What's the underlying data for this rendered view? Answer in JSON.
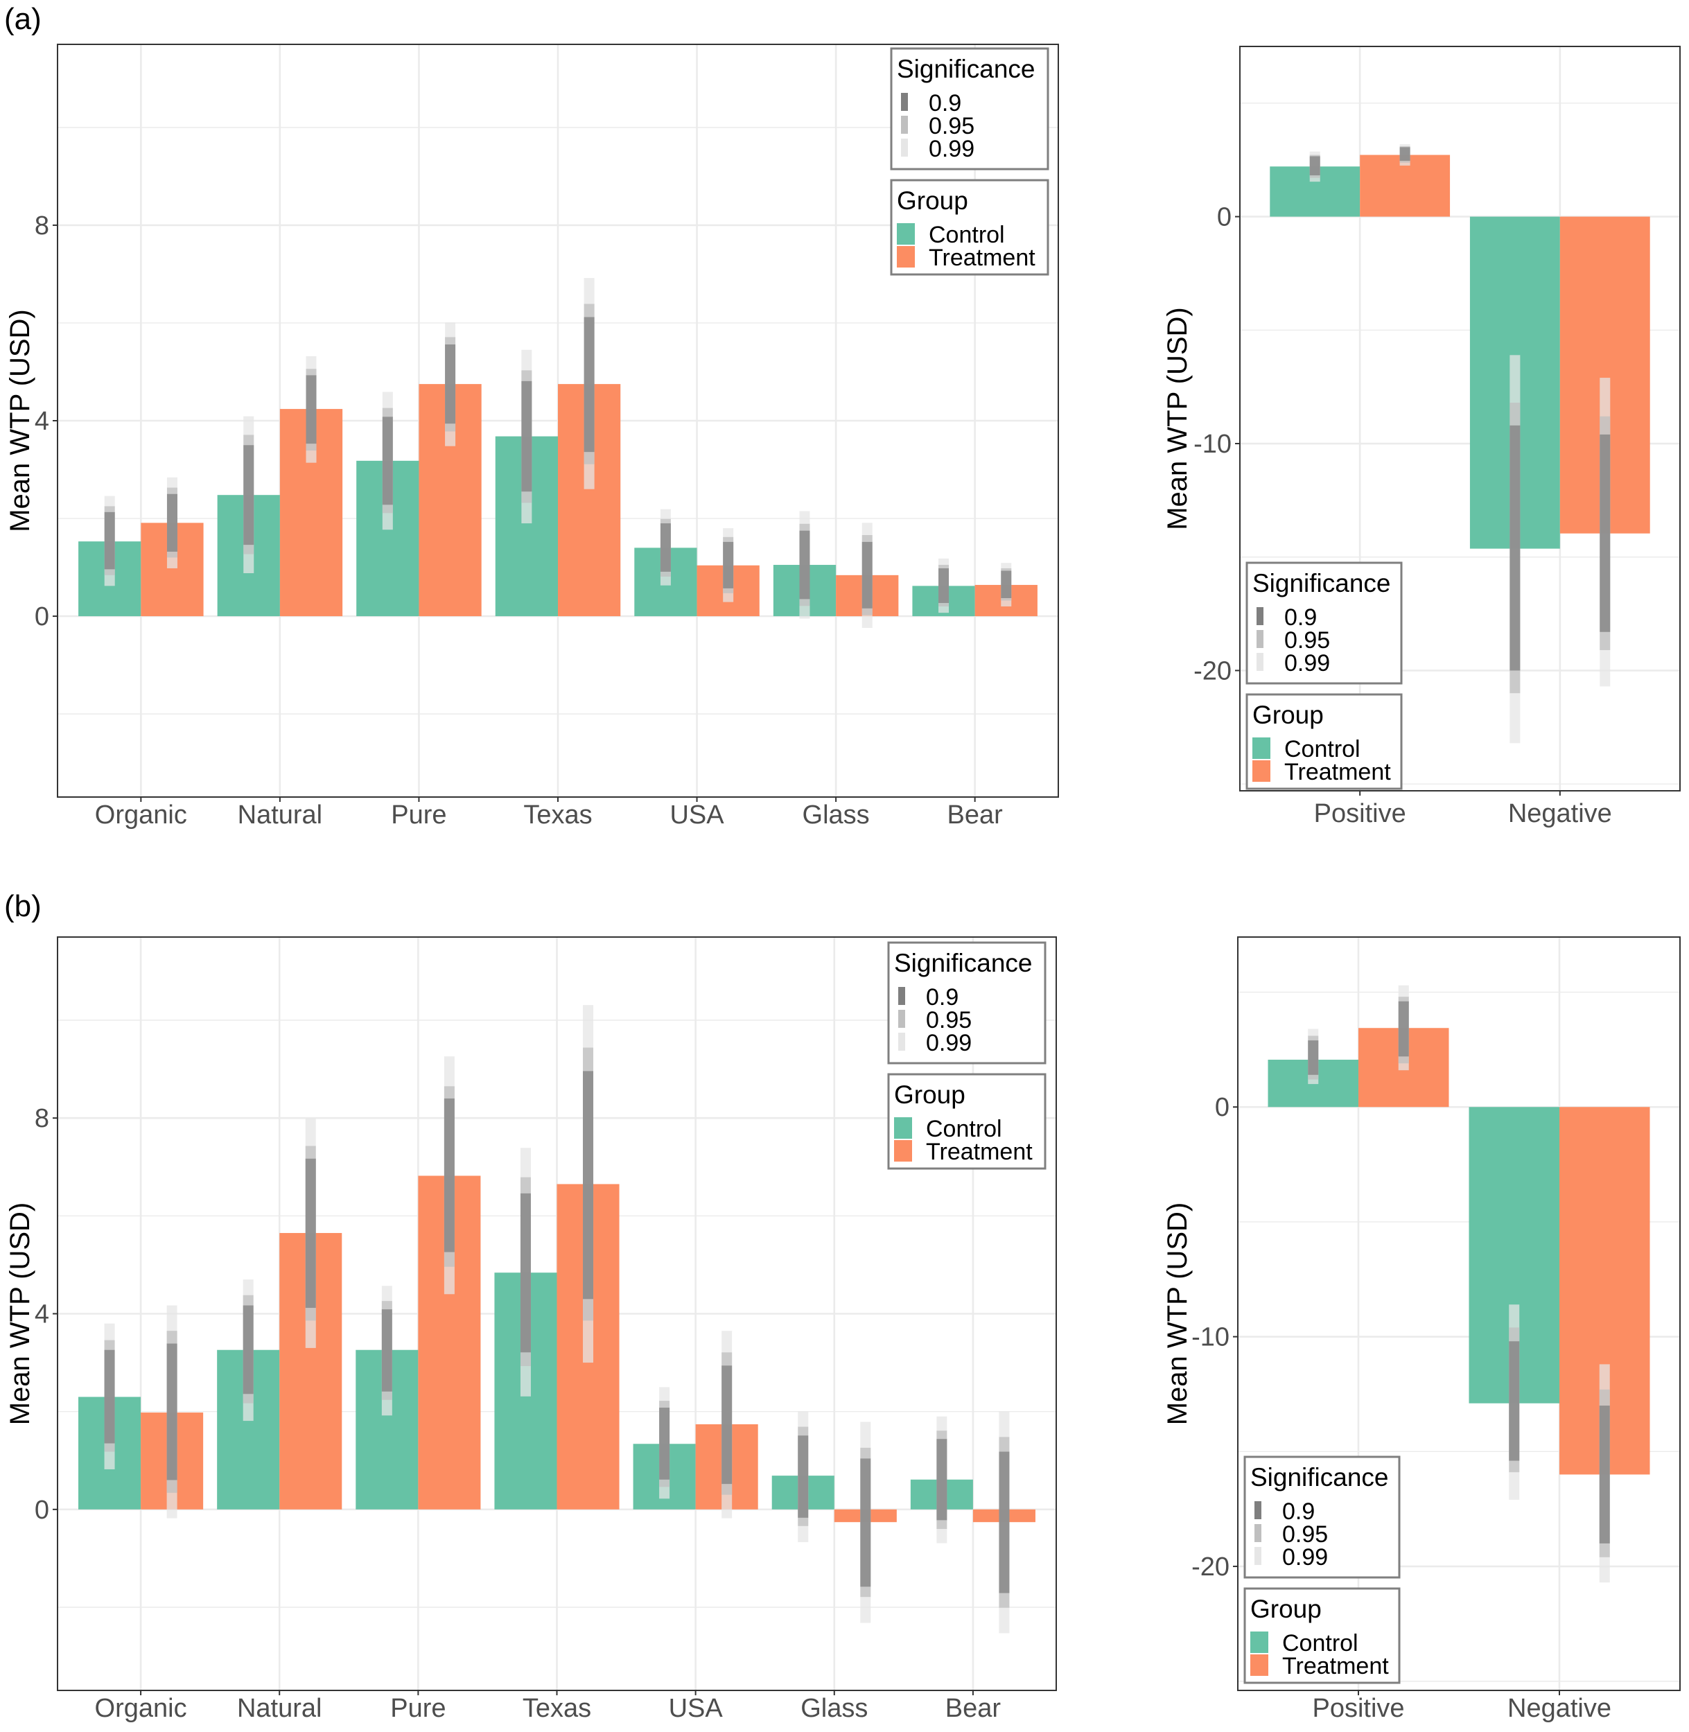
{
  "figure": {
    "panels": [
      "(a)",
      "(b)"
    ]
  },
  "colors": {
    "control": "#66c2a5",
    "treatment": "#fc8d62",
    "sig_0_9": "#7f7f7f",
    "sig_0_95": "#bfbfbf",
    "sig_0_99": "#e6e6e6",
    "grid": "#ebebeb",
    "border": "#333333"
  },
  "legend": {
    "significance_title": "Significance",
    "significance_levels": [
      "0.9",
      "0.95",
      "0.99"
    ],
    "group_title": "Group",
    "groups": [
      "Control",
      "Treatment"
    ]
  },
  "chart_data": [
    {
      "id": "a-attributes",
      "panel": "(a)",
      "type": "bar",
      "title": "",
      "xlabel": "",
      "ylabel": "Mean WTP (USD)",
      "ylim": [
        -3.7,
        11.7
      ],
      "yticks": [
        0,
        4,
        8
      ],
      "grid": true,
      "legend_position": "top-right",
      "categories": [
        "Organic",
        "Natural",
        "Pure",
        "Texas",
        "USA",
        "Glass",
        "Bear"
      ],
      "series": [
        {
          "name": "Control",
          "values": [
            1.53,
            2.48,
            3.18,
            3.68,
            1.4,
            1.05,
            0.62
          ],
          "intervals": {
            "0.9": [
              [
                0.96,
                2.13
              ],
              [
                1.46,
                3.5
              ],
              [
                2.28,
                4.08
              ],
              [
                2.55,
                4.81
              ],
              [
                0.91,
                1.9
              ],
              [
                0.35,
                1.75
              ],
              [
                0.27,
                0.98
              ]
            ],
            "0.95": [
              [
                0.84,
                2.25
              ],
              [
                1.27,
                3.71
              ],
              [
                2.11,
                4.26
              ],
              [
                2.32,
                5.03
              ],
              [
                0.81,
                1.99
              ],
              [
                0.21,
                1.89
              ],
              [
                0.2,
                1.05
              ]
            ],
            "0.99": [
              [
                0.62,
                2.46
              ],
              [
                0.88,
                4.09
              ],
              [
                1.77,
                4.59
              ],
              [
                1.9,
                5.45
              ],
              [
                0.63,
                2.19
              ],
              [
                -0.05,
                2.15
              ],
              [
                0.07,
                1.18
              ]
            ]
          }
        },
        {
          "name": "Treatment",
          "values": [
            1.91,
            4.24,
            4.75,
            4.75,
            1.04,
            0.84,
            0.64
          ],
          "intervals": {
            "0.9": [
              [
                1.32,
                2.5
              ],
              [
                3.53,
                4.93
              ],
              [
                3.94,
                5.56
              ],
              [
                3.36,
                6.12
              ],
              [
                0.57,
                1.52
              ],
              [
                0.16,
                1.52
              ],
              [
                0.37,
                0.93
              ]
            ],
            "0.95": [
              [
                1.2,
                2.63
              ],
              [
                3.39,
                5.06
              ],
              [
                3.78,
                5.71
              ],
              [
                3.11,
                6.39
              ],
              [
                0.47,
                1.62
              ],
              [
                0.02,
                1.66
              ],
              [
                0.32,
                0.98
              ]
            ],
            "0.99": [
              [
                0.98,
                2.84
              ],
              [
                3.14,
                5.32
              ],
              [
                3.48,
                6.01
              ],
              [
                2.6,
                6.92
              ],
              [
                0.29,
                1.8
              ],
              [
                -0.24,
                1.91
              ],
              [
                0.2,
                1.09
              ]
            ]
          }
        }
      ]
    },
    {
      "id": "a-valence",
      "panel": "(a)",
      "type": "bar",
      "title": "",
      "xlabel": "",
      "ylabel": "Mean WTP (USD)",
      "ylim": [
        -25.3,
        7.5
      ],
      "yticks": [
        0,
        -10,
        -20
      ],
      "grid": true,
      "legend_position": "bottom-left",
      "categories": [
        "Positive",
        "Negative"
      ],
      "series": [
        {
          "name": "Control",
          "values": [
            2.21,
            -14.63
          ],
          "intervals": {
            "0.9": [
              [
                1.82,
                2.66
              ],
              [
                -20.0,
                -9.2
              ]
            ],
            "0.95": [
              [
                1.71,
                2.72
              ],
              [
                -21.0,
                -8.2
              ]
            ],
            "0.99": [
              [
                1.54,
                2.87
              ],
              [
                -23.2,
                -6.1
              ]
            ]
          }
        },
        {
          "name": "Treatment",
          "values": [
            2.72,
            -13.96
          ],
          "intervals": {
            "0.9": [
              [
                2.46,
                3.06
              ],
              [
                -18.3,
                -9.6
              ]
            ],
            "0.95": [
              [
                2.38,
                3.1
              ],
              [
                -19.1,
                -8.8
              ]
            ],
            "0.99": [
              [
                2.25,
                3.19
              ],
              [
                -20.7,
                -7.1
              ]
            ]
          }
        }
      ]
    },
    {
      "id": "b-attributes",
      "panel": "(b)",
      "type": "bar",
      "title": "",
      "xlabel": "",
      "ylabel": "Mean WTP (USD)",
      "ylim": [
        -3.7,
        11.7
      ],
      "yticks": [
        0,
        4,
        8
      ],
      "grid": true,
      "legend_position": "top-right",
      "categories": [
        "Organic",
        "Natural",
        "Pure",
        "Texas",
        "USA",
        "Glass",
        "Bear"
      ],
      "series": [
        {
          "name": "Control",
          "values": [
            2.3,
            3.26,
            3.26,
            4.84,
            1.34,
            0.69,
            0.61
          ],
          "intervals": {
            "0.9": [
              [
                1.35,
                3.26
              ],
              [
                2.36,
                4.17
              ],
              [
                2.41,
                4.09
              ],
              [
                3.21,
                6.46
              ],
              [
                0.61,
                2.08
              ],
              [
                -0.17,
                1.51
              ],
              [
                -0.22,
                1.44
              ]
            ],
            "0.95": [
              [
                1.18,
                3.46
              ],
              [
                2.17,
                4.38
              ],
              [
                2.24,
                4.26
              ],
              [
                2.93,
                6.79
              ],
              [
                0.46,
                2.22
              ],
              [
                -0.34,
                1.69
              ],
              [
                -0.4,
                1.61
              ]
            ],
            "0.99": [
              [
                0.82,
                3.8
              ],
              [
                1.81,
                4.7
              ],
              [
                1.92,
                4.57
              ],
              [
                2.31,
                7.39
              ],
              [
                0.22,
                2.5
              ],
              [
                -0.67,
                2.0
              ],
              [
                -0.69,
                1.9
              ]
            ]
          }
        },
        {
          "name": "Treatment",
          "values": [
            1.98,
            5.65,
            6.82,
            6.65,
            1.74,
            -0.26,
            -0.26
          ],
          "intervals": {
            "0.9": [
              [
                0.6,
                3.39
              ],
              [
                4.12,
                7.17
              ],
              [
                5.26,
                8.4
              ],
              [
                4.3,
                8.96
              ],
              [
                0.52,
                2.94
              ],
              [
                -1.58,
                1.04
              ],
              [
                -1.71,
                1.18
              ]
            ],
            "0.95": [
              [
                0.34,
                3.65
              ],
              [
                3.86,
                7.43
              ],
              [
                4.96,
                8.65
              ],
              [
                3.86,
                9.44
              ],
              [
                0.3,
                3.21
              ],
              [
                -1.79,
                1.26
              ],
              [
                -2.01,
                1.48
              ]
            ],
            "0.99": [
              [
                -0.18,
                4.17
              ],
              [
                3.3,
                7.99
              ],
              [
                4.4,
                9.26
              ],
              [
                3.0,
                10.31
              ],
              [
                -0.18,
                3.65
              ],
              [
                -2.32,
                1.79
              ],
              [
                -2.53,
                2.0
              ]
            ]
          }
        }
      ]
    },
    {
      "id": "b-valence",
      "panel": "(b)",
      "type": "bar",
      "title": "",
      "xlabel": "",
      "ylabel": "Mean WTP (USD)",
      "ylim": [
        -25.4,
        7.4
      ],
      "yticks": [
        0,
        -10,
        -20
      ],
      "grid": true,
      "legend_position": "bottom-left",
      "categories": [
        "Positive",
        "Negative"
      ],
      "series": [
        {
          "name": "Control",
          "values": [
            2.06,
            -12.9
          ],
          "intervals": {
            "0.9": [
              [
                1.4,
                2.9
              ],
              [
                -15.4,
                -10.2
              ]
            ],
            "0.95": [
              [
                1.2,
                3.1
              ],
              [
                -15.9,
                -9.6
              ]
            ],
            "0.99": [
              [
                1.0,
                3.4
              ],
              [
                -17.1,
                -8.6
              ]
            ]
          }
        },
        {
          "name": "Treatment",
          "values": [
            3.44,
            -16.0
          ],
          "intervals": {
            "0.9": [
              [
                2.2,
                4.6
              ],
              [
                -19.0,
                -13.0
              ]
            ],
            "0.95": [
              [
                1.9,
                4.8
              ],
              [
                -19.6,
                -12.3
              ]
            ],
            "0.99": [
              [
                1.6,
                5.3
              ],
              [
                -20.7,
                -11.2
              ]
            ]
          }
        }
      ]
    }
  ]
}
